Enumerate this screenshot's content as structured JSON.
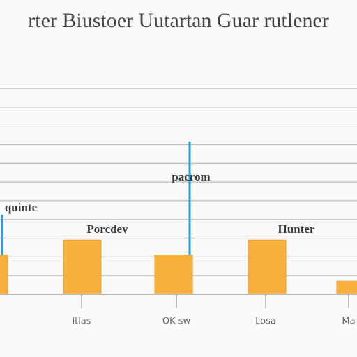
{
  "chart_data": {
    "type": "bar",
    "title": "rter Biustoer Uutartan Guar rutlener",
    "categories": [
      null,
      "ltlas",
      "OK sw",
      "Losa",
      "Ma"
    ],
    "series": [
      {
        "color": "#f6b13f",
        "values": [
          21,
          29,
          21,
          29,
          7
        ]
      },
      {
        "color": "#2e9be8",
        "values": [
          21.5,
          null,
          60.7,
          null,
          null
        ]
      }
    ],
    "annotations": [
      "quinte",
      "Porcdev",
      "pacrom",
      "Hunter"
    ],
    "ylim": [
      0,
      110
    ],
    "yticks": [
      0,
      10,
      20,
      30,
      40,
      50,
      60,
      70,
      80,
      90,
      100,
      110
    ],
    "grid": true
  }
}
